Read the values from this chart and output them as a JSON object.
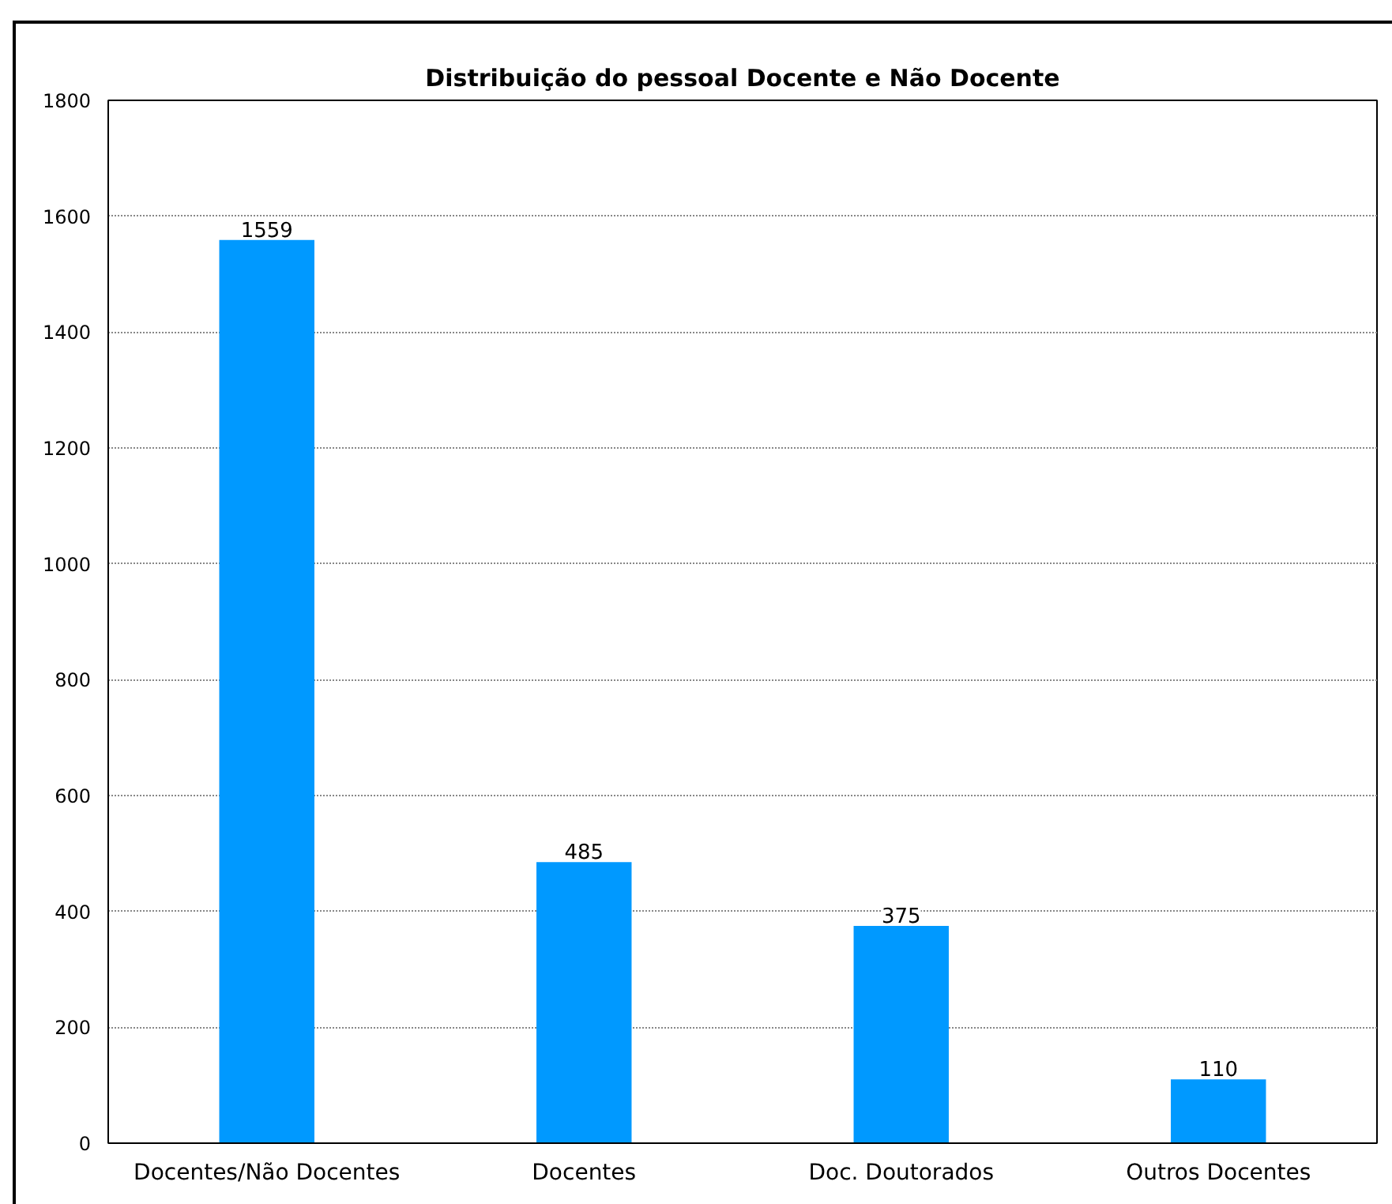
{
  "chart_data": {
    "type": "bar",
    "title": "Distribuição do pessoal Docente e Não Docente",
    "categories": [
      "Docentes/Não Docentes",
      "Docentes",
      "Doc. Doutorados",
      "Outros Docentes"
    ],
    "values": [
      1559,
      485,
      375,
      110
    ],
    "color": "#0099ff",
    "ylim": [
      0,
      1800
    ],
    "yticks": [
      0,
      200,
      400,
      600,
      800,
      1000,
      1200,
      1400,
      1600,
      1800
    ],
    "grid": "y",
    "data_labels": true
  }
}
